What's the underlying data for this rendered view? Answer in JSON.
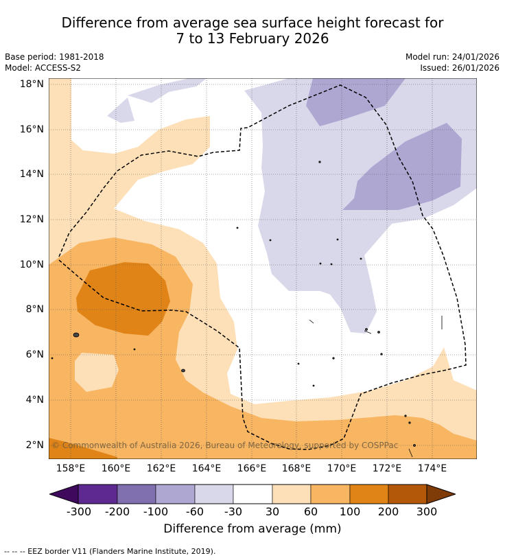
{
  "title_line1": "Difference from average sea surface height forecast for",
  "title_line2": "7 to 13 February 2026",
  "meta": {
    "base_period": "Base period: 1981-2018",
    "model": "Model: ACCESS-S2",
    "model_run": "Model run: 24/01/2026",
    "issued": "Issued: 26/01/2026"
  },
  "axes": {
    "lat_labels": [
      "18°N",
      "16°N",
      "14°N",
      "12°N",
      "10°N",
      "8°N",
      "6°N",
      "4°N",
      "2°N"
    ],
    "lon_labels": [
      "158°E",
      "160°E",
      "162°E",
      "164°E",
      "166°E",
      "168°E",
      "170°E",
      "172°E",
      "174°E"
    ]
  },
  "copyright": "© Commonwealth of Australia 2026, Bureau of Meteorology, supported by COSPPac",
  "colorbar": {
    "labels": [
      "-300",
      "-200",
      "-100",
      "-60",
      "-30",
      "30",
      "60",
      "100",
      "200",
      "300"
    ],
    "colors": [
      "#3f0a5e",
      "#5e2a91",
      "#8070b0",
      "#ada7d2",
      "#d8d8ea",
      "#ffffff",
      "#fde0b8",
      "#f8b562",
      "#e08418",
      "#b35808",
      "#7f3b08"
    ],
    "title": "Difference from average (mm)"
  },
  "footer": "--  --  -- EEZ border V11 (Flanders Marine Institute, 2019).",
  "palette": {
    "light_purple": "#d8d8ea",
    "mid_purple": "#ada7d2",
    "light_orange": "#fde0b8",
    "mid_orange": "#f8b562",
    "dark_orange": "#e08418"
  }
}
